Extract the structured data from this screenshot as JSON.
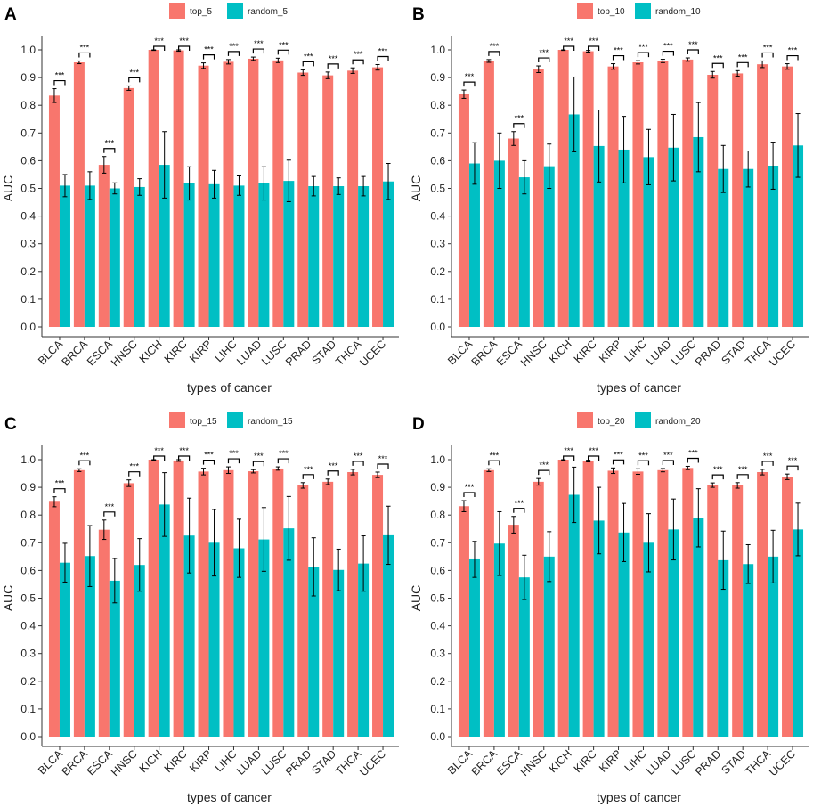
{
  "figure": {
    "xlabel": "types of cancer",
    "ylabel": "AUC",
    "significance_label": "***",
    "colors": {
      "top": "#F8766D",
      "random": "#00BFC4",
      "axis": "#333333",
      "text": "#222222"
    }
  },
  "chart_data": [
    {
      "type": "bar",
      "panel": "A",
      "categories": [
        "BLCA",
        "BRCA",
        "ESCA",
        "HNSC",
        "KICH",
        "KIRC",
        "KIRP",
        "LIHC",
        "LUAD",
        "LUSC",
        "PRAD",
        "STAD",
        "THCA",
        "UCEC"
      ],
      "xlabel": "types of cancer",
      "ylabel": "AUC",
      "ylim": [
        0,
        1.0
      ],
      "yticks": [
        "0.0",
        "0.1",
        "0.2",
        "0.3",
        "0.4",
        "0.5",
        "0.6",
        "0.7",
        "0.8",
        "0.9",
        "1.0"
      ],
      "legend_position": "top",
      "series": [
        {
          "name": "top_5",
          "values": [
            0.835,
            0.955,
            0.585,
            0.862,
            1.0,
            0.998,
            0.943,
            0.957,
            0.968,
            0.962,
            0.918,
            0.908,
            0.925,
            0.937
          ],
          "error": [
            0.025,
            0.005,
            0.03,
            0.008,
            0.002,
            0.003,
            0.01,
            0.008,
            0.006,
            0.008,
            0.01,
            0.012,
            0.01,
            0.01
          ]
        },
        {
          "name": "random_5",
          "values": [
            0.51,
            0.51,
            0.5,
            0.505,
            0.585,
            0.518,
            0.515,
            0.51,
            0.518,
            0.527,
            0.508,
            0.508,
            0.508,
            0.525
          ],
          "error": [
            0.04,
            0.05,
            0.02,
            0.03,
            0.12,
            0.06,
            0.05,
            0.035,
            0.06,
            0.075,
            0.035,
            0.03,
            0.035,
            0.065
          ]
        }
      ]
    },
    {
      "type": "bar",
      "panel": "B",
      "categories": [
        "BLCA",
        "BRCA",
        "ESCA",
        "HNSC",
        "KICH",
        "KIRC",
        "KIRP",
        "LIHC",
        "LUAD",
        "LUSC",
        "PRAD",
        "STAD",
        "THCA",
        "UCEC"
      ],
      "xlabel": "types of cancer",
      "ylabel": "AUC",
      "ylim": [
        0,
        1.0
      ],
      "yticks": [
        "0.0",
        "0.1",
        "0.2",
        "0.3",
        "0.4",
        "0.5",
        "0.6",
        "0.7",
        "0.8",
        "0.9",
        "1.0"
      ],
      "legend_position": "top",
      "series": [
        {
          "name": "top_10",
          "values": [
            0.84,
            0.96,
            0.68,
            0.93,
            1.0,
            0.995,
            0.94,
            0.955,
            0.96,
            0.965,
            0.91,
            0.915,
            0.948,
            0.94
          ],
          "error": [
            0.015,
            0.005,
            0.025,
            0.012,
            0.002,
            0.003,
            0.01,
            0.006,
            0.006,
            0.006,
            0.012,
            0.01,
            0.012,
            0.01
          ]
        },
        {
          "name": "random_10",
          "values": [
            0.59,
            0.6,
            0.54,
            0.58,
            0.767,
            0.653,
            0.64,
            0.613,
            0.647,
            0.685,
            0.57,
            0.57,
            0.582,
            0.655
          ],
          "error": [
            0.075,
            0.1,
            0.06,
            0.08,
            0.135,
            0.13,
            0.12,
            0.1,
            0.12,
            0.125,
            0.085,
            0.065,
            0.085,
            0.115
          ]
        }
      ]
    },
    {
      "type": "bar",
      "panel": "C",
      "categories": [
        "BLCA",
        "BRCA",
        "ESCA",
        "HNSC",
        "KICH",
        "KIRC",
        "KIRP",
        "LIHC",
        "LUAD",
        "LUSC",
        "PRAD",
        "STAD",
        "THCA",
        "UCEC"
      ],
      "xlabel": "types of cancer",
      "ylabel": "AUC",
      "ylim": [
        0,
        1.0
      ],
      "yticks": [
        "0.0",
        "0.1",
        "0.2",
        "0.3",
        "0.4",
        "0.5",
        "0.6",
        "0.7",
        "0.8",
        "0.9",
        "1.0"
      ],
      "legend_position": "top",
      "series": [
        {
          "name": "top_15",
          "values": [
            0.848,
            0.962,
            0.747,
            0.915,
            1.0,
            0.997,
            0.957,
            0.962,
            0.958,
            0.968,
            0.907,
            0.92,
            0.955,
            0.945
          ],
          "error": [
            0.018,
            0.005,
            0.035,
            0.012,
            0.002,
            0.003,
            0.012,
            0.012,
            0.006,
            0.006,
            0.01,
            0.01,
            0.01,
            0.01
          ]
        },
        {
          "name": "random_15",
          "values": [
            0.628,
            0.652,
            0.563,
            0.62,
            0.838,
            0.726,
            0.7,
            0.68,
            0.712,
            0.752,
            0.613,
            0.602,
            0.625,
            0.727
          ],
          "error": [
            0.07,
            0.11,
            0.08,
            0.095,
            0.115,
            0.135,
            0.12,
            0.105,
            0.115,
            0.115,
            0.105,
            0.075,
            0.1,
            0.105
          ]
        }
      ]
    },
    {
      "type": "bar",
      "panel": "D",
      "categories": [
        "BLCA",
        "BRCA",
        "ESCA",
        "HNSC",
        "KICH",
        "KIRC",
        "KIRP",
        "LIHC",
        "LUAD",
        "LUSC",
        "PRAD",
        "STAD",
        "THCA",
        "UCEC"
      ],
      "xlabel": "types of cancer",
      "ylabel": "AUC",
      "ylim": [
        0,
        1.0
      ],
      "yticks": [
        "0.0",
        "0.1",
        "0.2",
        "0.3",
        "0.4",
        "0.5",
        "0.6",
        "0.7",
        "0.8",
        "0.9",
        "1.0"
      ],
      "legend_position": "top",
      "series": [
        {
          "name": "top_20",
          "values": [
            0.832,
            0.962,
            0.765,
            0.92,
            1.0,
            0.995,
            0.96,
            0.957,
            0.962,
            0.97,
            0.908,
            0.907,
            0.955,
            0.938
          ],
          "error": [
            0.02,
            0.005,
            0.03,
            0.012,
            0.002,
            0.003,
            0.01,
            0.01,
            0.006,
            0.006,
            0.008,
            0.01,
            0.01,
            0.01
          ]
        },
        {
          "name": "random_20",
          "values": [
            0.64,
            0.697,
            0.575,
            0.65,
            0.873,
            0.78,
            0.737,
            0.7,
            0.748,
            0.79,
            0.637,
            0.623,
            0.65,
            0.748
          ],
          "error": [
            0.065,
            0.115,
            0.08,
            0.09,
            0.1,
            0.12,
            0.105,
            0.105,
            0.11,
            0.105,
            0.105,
            0.07,
            0.095,
            0.095
          ]
        }
      ]
    }
  ]
}
